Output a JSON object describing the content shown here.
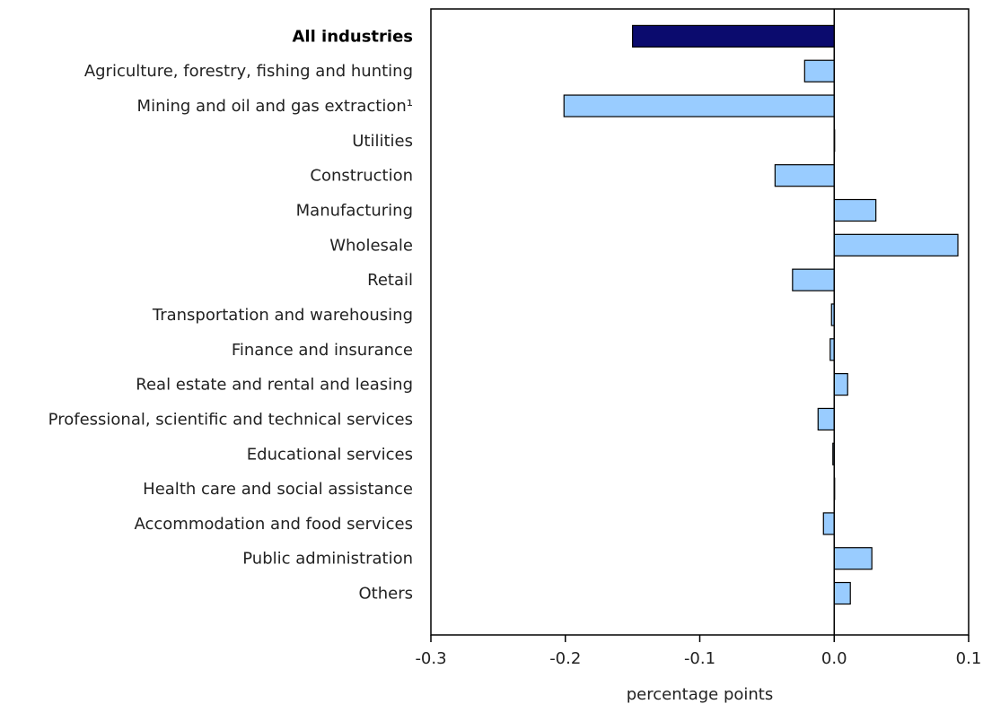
{
  "chart_data": {
    "type": "bar",
    "orientation": "horizontal",
    "categories": [
      "All industries",
      "Agriculture, forestry, fishing and hunting",
      "Mining and oil and gas extraction¹",
      "Utilities",
      "Construction",
      "Manufacturing",
      "Wholesale",
      "Retail",
      "Transportation and warehousing",
      "Finance and insurance",
      "Real estate and rental and leasing",
      "Professional, scientific and technical services",
      "Educational services",
      "Health care and social assistance",
      "Accommodation and food services",
      "Public administration",
      "Others"
    ],
    "values": [
      -0.15,
      -0.022,
      -0.201,
      0.0,
      -0.044,
      0.031,
      0.092,
      -0.031,
      -0.002,
      -0.003,
      0.01,
      -0.012,
      -0.001,
      0.0,
      -0.008,
      0.028,
      0.012
    ],
    "highlight": [
      true,
      false,
      false,
      false,
      false,
      false,
      false,
      false,
      false,
      false,
      false,
      false,
      false,
      false,
      false,
      false,
      false
    ],
    "xlim": [
      -0.3,
      0.1
    ],
    "xticks": [
      "-0.3",
      "-0.2",
      "-0.1",
      "0.0",
      "0.1"
    ],
    "xtick_values": [
      -0.3,
      -0.2,
      -0.1,
      0.0,
      0.1
    ],
    "xlabel": "percentage points",
    "title": "",
    "grid": false,
    "colors": {
      "highlight": "#0b0b6e",
      "bar": "#99ccff",
      "stroke": "#000000",
      "axis": "#000000"
    }
  }
}
